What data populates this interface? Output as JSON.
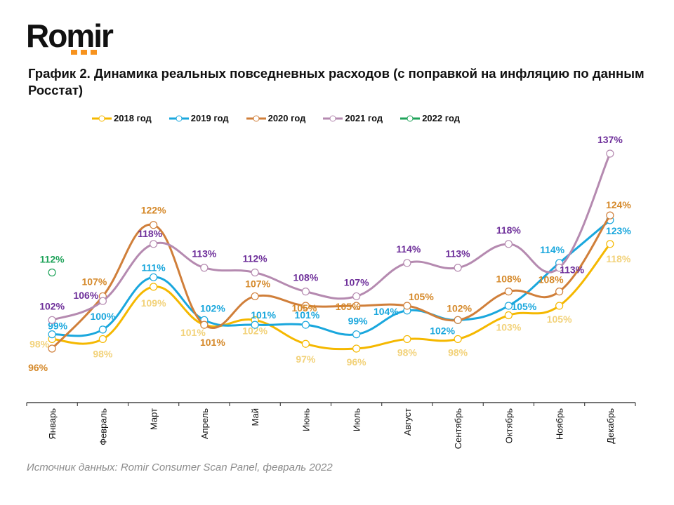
{
  "logo": {
    "text": "Romir"
  },
  "title": "График 2. Динамика реальных повседневных расходов (с поправкой на инфляцию по данным Росстат)",
  "source": "Источник данных: Romir Consumer Scan Panel, февраль 2022",
  "chart_data": {
    "type": "line",
    "title": "График 2. Динамика реальных повседневных расходов (с поправкой на инфляцию по данным Росстат)",
    "xlabel": "",
    "ylabel": "",
    "ylim": [
      80,
      140
    ],
    "grid": false,
    "legend": "top",
    "categories": [
      "Январь",
      "Февраль",
      "Март",
      "Апрель",
      "Май",
      "Июнь",
      "Июль",
      "Август",
      "Сентябрь",
      "Октябрь",
      "Ноябрь",
      "Декабрь"
    ],
    "series": [
      {
        "name": "2018 год",
        "color": "#f5b800",
        "label_color": "#f2d27a",
        "values": [
          98,
          98,
          109,
          101,
          102,
          97,
          96,
          98,
          98,
          103,
          105,
          118
        ]
      },
      {
        "name": "2019 год",
        "color": "#1aa7dd",
        "label_color": "#1aa7dd",
        "values": [
          99,
          100,
          111,
          102,
          101,
          101,
          99,
          104,
          102,
          105,
          114,
          123
        ]
      },
      {
        "name": "2020 год",
        "color": "#d07f3a",
        "label_color": "#d5892a",
        "values": [
          96,
          107,
          122,
          101,
          107,
          105,
          105,
          105,
          102,
          108,
          108,
          124
        ]
      },
      {
        "name": "2021 год",
        "color": "#b58ab0",
        "label_color": "#6e2f9a",
        "values": [
          102,
          106,
          118,
          113,
          112,
          108,
          107,
          114,
          113,
          118,
          113,
          137
        ]
      },
      {
        "name": "2022 год",
        "color": "#1fa35a",
        "label_color": "#1fa35a",
        "values": [
          112,
          null,
          null,
          null,
          null,
          null,
          null,
          null,
          null,
          null,
          null,
          null
        ]
      }
    ],
    "data_labels": true
  }
}
